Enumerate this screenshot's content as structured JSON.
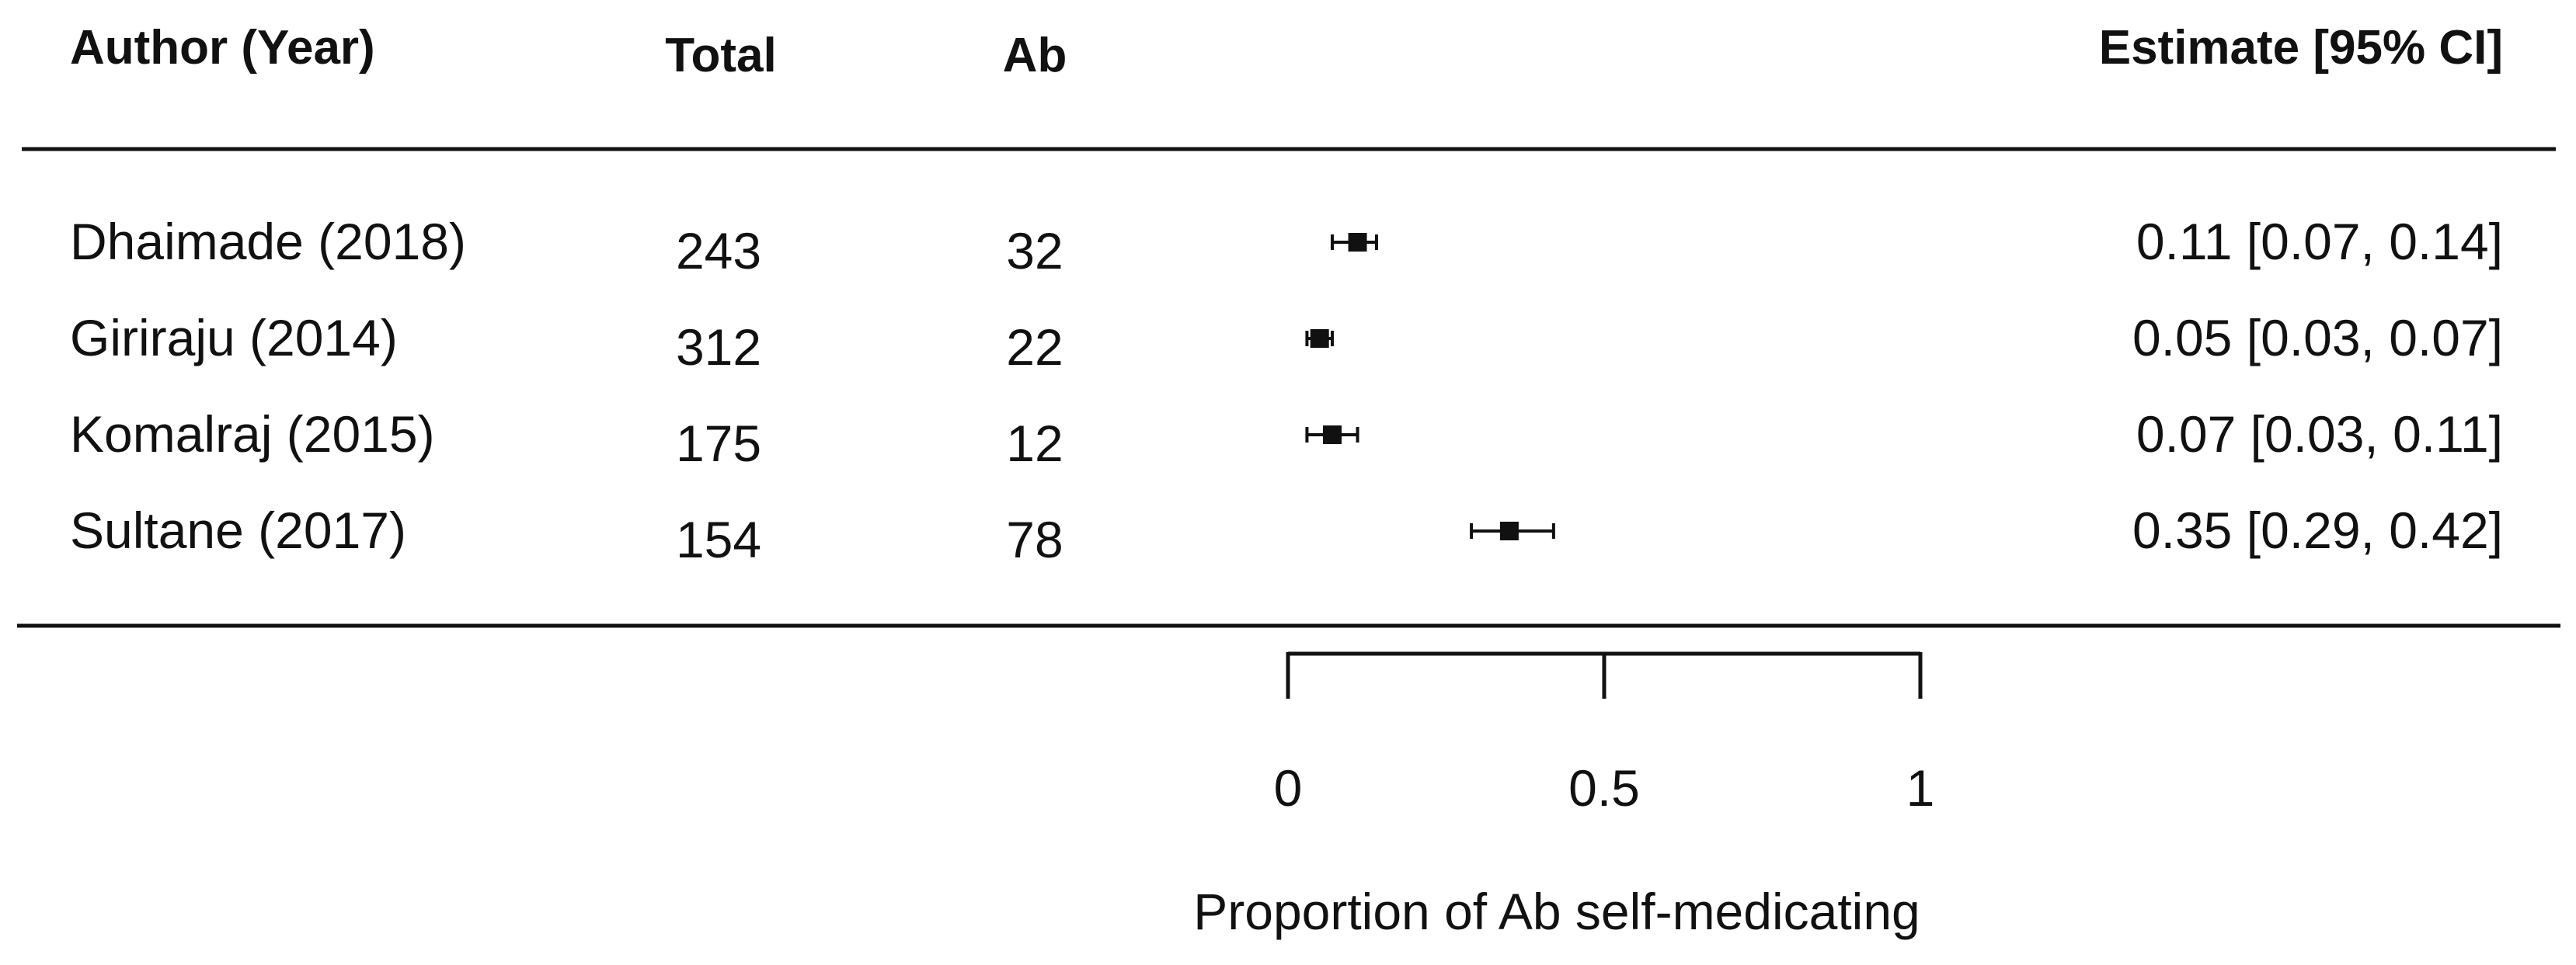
{
  "chart_data": {
    "type": "forest",
    "columns": {
      "author": "Author (Year)",
      "total": "Total",
      "ab": "Ab",
      "estimate": "Estimate [95% CI]"
    },
    "studies": [
      {
        "author": "Dhaimade (2018)",
        "total": "243",
        "ab": "32",
        "estimate": 0.11,
        "ci_low": 0.07,
        "ci_high": 0.14,
        "estimate_text": "0.11 [0.07, 0.14]"
      },
      {
        "author": "Giriraju (2014)",
        "total": "312",
        "ab": "22",
        "estimate": 0.05,
        "ci_low": 0.03,
        "ci_high": 0.07,
        "estimate_text": "0.05 [0.03, 0.07]"
      },
      {
        "author": "Komalraj (2015)",
        "total": "175",
        "ab": "12",
        "estimate": 0.07,
        "ci_low": 0.03,
        "ci_high": 0.11,
        "estimate_text": "0.07 [0.03, 0.11]"
      },
      {
        "author": "Sultane (2017)",
        "total": "154",
        "ab": "78",
        "estimate": 0.35,
        "ci_low": 0.29,
        "ci_high": 0.42,
        "estimate_text": "0.35 [0.29, 0.42]"
      }
    ],
    "xaxis": {
      "ticks": [
        0,
        0.5,
        1
      ],
      "tick_labels": [
        "0",
        "0.5",
        "1"
      ],
      "xlim": [
        0,
        1
      ],
      "label": "Proportion of Ab self-medicating"
    },
    "grid": false,
    "legend": "none"
  }
}
